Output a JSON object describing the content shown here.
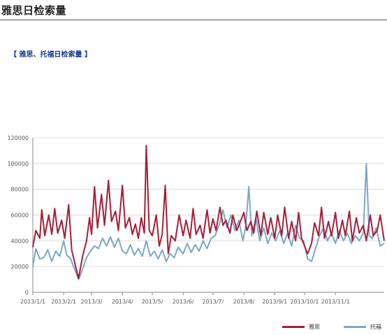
{
  "page": {
    "title": "雅思日检索量",
    "subtitle": "雅思、托福日检索量",
    "bracket_open": "【",
    "bracket_close": "】"
  },
  "chart_data": {
    "type": "line",
    "x_start": "2013/1/1",
    "x_end": "2013/12/20",
    "xticks": [
      "2013/1/1",
      "2013/2/1",
      "2013/3/",
      "2013/4/",
      "2013/5/",
      "2013/6/",
      "2013/7/",
      "2013/8/",
      "2013/9/1",
      "2013/10/1",
      "2013/11/1"
    ],
    "ylim": [
      0,
      120000
    ],
    "yticks": [
      0,
      20000,
      40000,
      60000,
      80000,
      100000,
      120000
    ],
    "grid": true,
    "legend_position": "bottom-right",
    "series": [
      {
        "name": "雅思",
        "color": "#a31f38",
        "points": [
          [
            "2013-01-01",
            35000
          ],
          [
            "2013-01-04",
            48000
          ],
          [
            "2013-01-08",
            42000
          ],
          [
            "2013-01-10",
            64000
          ],
          [
            "2013-01-13",
            44000
          ],
          [
            "2013-01-17",
            60000
          ],
          [
            "2013-01-20",
            45000
          ],
          [
            "2013-01-23",
            65000
          ],
          [
            "2013-01-26",
            46000
          ],
          [
            "2013-01-30",
            56000
          ],
          [
            "2013-02-02",
            42000
          ],
          [
            "2013-02-06",
            68000
          ],
          [
            "2013-02-09",
            33000
          ],
          [
            "2013-02-13",
            20000
          ],
          [
            "2013-02-16",
            11000
          ],
          [
            "2013-02-20",
            28000
          ],
          [
            "2013-02-24",
            40000
          ],
          [
            "2013-02-27",
            58000
          ],
          [
            "2013-03-01",
            45000
          ],
          [
            "2013-03-04",
            82000
          ],
          [
            "2013-03-07",
            50000
          ],
          [
            "2013-03-11",
            76000
          ],
          [
            "2013-03-14",
            52000
          ],
          [
            "2013-03-18",
            87000
          ],
          [
            "2013-03-21",
            55000
          ],
          [
            "2013-03-25",
            63000
          ],
          [
            "2013-03-28",
            48000
          ],
          [
            "2013-04-01",
            83000
          ],
          [
            "2013-04-04",
            50000
          ],
          [
            "2013-04-08",
            58000
          ],
          [
            "2013-04-11",
            45000
          ],
          [
            "2013-04-14",
            53000
          ],
          [
            "2013-04-17",
            42000
          ],
          [
            "2013-04-20",
            58000
          ],
          [
            "2013-04-23",
            46000
          ],
          [
            "2013-04-25",
            114000
          ],
          [
            "2013-04-28",
            48000
          ],
          [
            "2013-05-01",
            44000
          ],
          [
            "2013-05-05",
            60000
          ],
          [
            "2013-05-08",
            36000
          ],
          [
            "2013-05-11",
            45000
          ],
          [
            "2013-05-14",
            83000
          ],
          [
            "2013-05-17",
            30000
          ],
          [
            "2013-05-20",
            44000
          ],
          [
            "2013-05-24",
            40000
          ],
          [
            "2013-05-28",
            60000
          ],
          [
            "2013-06-01",
            44000
          ],
          [
            "2013-06-04",
            56000
          ],
          [
            "2013-06-08",
            42000
          ],
          [
            "2013-06-11",
            65000
          ],
          [
            "2013-06-14",
            45000
          ],
          [
            "2013-06-18",
            52000
          ],
          [
            "2013-06-21",
            42000
          ],
          [
            "2013-06-25",
            64000
          ],
          [
            "2013-06-28",
            46000
          ],
          [
            "2013-07-01",
            57000
          ],
          [
            "2013-07-04",
            48000
          ],
          [
            "2013-07-08",
            66000
          ],
          [
            "2013-07-11",
            52000
          ],
          [
            "2013-07-14",
            56000
          ],
          [
            "2013-07-18",
            46000
          ],
          [
            "2013-07-21",
            60000
          ],
          [
            "2013-07-25",
            48000
          ],
          [
            "2013-07-28",
            54000
          ],
          [
            "2013-08-01",
            62000
          ],
          [
            "2013-08-04",
            48000
          ],
          [
            "2013-08-08",
            55000
          ],
          [
            "2013-08-11",
            46000
          ],
          [
            "2013-08-14",
            63000
          ],
          [
            "2013-08-18",
            44000
          ],
          [
            "2013-08-21",
            62000
          ],
          [
            "2013-08-25",
            45000
          ],
          [
            "2013-08-28",
            58000
          ],
          [
            "2013-09-01",
            42000
          ],
          [
            "2013-09-04",
            60000
          ],
          [
            "2013-09-08",
            44000
          ],
          [
            "2013-09-11",
            66000
          ],
          [
            "2013-09-15",
            42000
          ],
          [
            "2013-09-18",
            55000
          ],
          [
            "2013-09-22",
            40000
          ],
          [
            "2013-09-25",
            62000
          ],
          [
            "2013-09-28",
            42000
          ],
          [
            "2013-10-01",
            36000
          ],
          [
            "2013-10-04",
            30000
          ],
          [
            "2013-10-08",
            38000
          ],
          [
            "2013-10-11",
            54000
          ],
          [
            "2013-10-15",
            44000
          ],
          [
            "2013-10-18",
            66000
          ],
          [
            "2013-10-21",
            42000
          ],
          [
            "2013-10-25",
            55000
          ],
          [
            "2013-10-28",
            44000
          ],
          [
            "2013-11-01",
            62000
          ],
          [
            "2013-11-04",
            42000
          ],
          [
            "2013-11-08",
            56000
          ],
          [
            "2013-11-11",
            44000
          ],
          [
            "2013-11-15",
            63000
          ],
          [
            "2013-11-18",
            40000
          ],
          [
            "2013-11-22",
            58000
          ],
          [
            "2013-11-25",
            46000
          ],
          [
            "2013-11-29",
            52000
          ],
          [
            "2013-12-02",
            40000
          ],
          [
            "2013-12-06",
            60000
          ],
          [
            "2013-12-09",
            44000
          ],
          [
            "2013-12-13",
            48000
          ],
          [
            "2013-12-16",
            60000
          ],
          [
            "2013-12-20",
            40000
          ]
        ]
      },
      {
        "name": "托福",
        "color": "#7ba7c9",
        "points": [
          [
            "2013-01-01",
            20000
          ],
          [
            "2013-01-04",
            34000
          ],
          [
            "2013-01-08",
            26000
          ],
          [
            "2013-01-12",
            27000
          ],
          [
            "2013-01-16",
            33000
          ],
          [
            "2013-01-20",
            24000
          ],
          [
            "2013-01-24",
            32000
          ],
          [
            "2013-01-28",
            28000
          ],
          [
            "2013-02-01",
            40000
          ],
          [
            "2013-02-04",
            29000
          ],
          [
            "2013-02-08",
            26000
          ],
          [
            "2013-02-12",
            18000
          ],
          [
            "2013-02-16",
            10000
          ],
          [
            "2013-02-20",
            18000
          ],
          [
            "2013-02-24",
            27000
          ],
          [
            "2013-02-28",
            32000
          ],
          [
            "2013-03-04",
            36000
          ],
          [
            "2013-03-08",
            34000
          ],
          [
            "2013-03-12",
            42000
          ],
          [
            "2013-03-16",
            36000
          ],
          [
            "2013-03-20",
            43000
          ],
          [
            "2013-03-24",
            35000
          ],
          [
            "2013-03-28",
            42000
          ],
          [
            "2013-04-01",
            32000
          ],
          [
            "2013-04-05",
            30000
          ],
          [
            "2013-04-09",
            37000
          ],
          [
            "2013-04-13",
            29000
          ],
          [
            "2013-04-17",
            34000
          ],
          [
            "2013-04-21",
            28000
          ],
          [
            "2013-04-25",
            40000
          ],
          [
            "2013-04-29",
            28000
          ],
          [
            "2013-05-03",
            32000
          ],
          [
            "2013-05-07",
            26000
          ],
          [
            "2013-05-11",
            33000
          ],
          [
            "2013-05-15",
            24000
          ],
          [
            "2013-05-19",
            30000
          ],
          [
            "2013-05-23",
            27000
          ],
          [
            "2013-05-27",
            35000
          ],
          [
            "2013-06-01",
            30000
          ],
          [
            "2013-06-05",
            38000
          ],
          [
            "2013-06-09",
            31000
          ],
          [
            "2013-06-13",
            37000
          ],
          [
            "2013-06-17",
            32000
          ],
          [
            "2013-06-21",
            40000
          ],
          [
            "2013-06-25",
            34000
          ],
          [
            "2013-06-29",
            42000
          ],
          [
            "2013-07-03",
            44000
          ],
          [
            "2013-07-07",
            52000
          ],
          [
            "2013-07-11",
            64000
          ],
          [
            "2013-07-15",
            50000
          ],
          [
            "2013-07-19",
            60000
          ],
          [
            "2013-07-23",
            48000
          ],
          [
            "2013-07-27",
            56000
          ],
          [
            "2013-07-31",
            40000
          ],
          [
            "2013-08-03",
            52000
          ],
          [
            "2013-08-06",
            82000
          ],
          [
            "2013-08-09",
            44000
          ],
          [
            "2013-08-13",
            58000
          ],
          [
            "2013-08-17",
            40000
          ],
          [
            "2013-08-21",
            50000
          ],
          [
            "2013-08-25",
            38000
          ],
          [
            "2013-08-29",
            46000
          ],
          [
            "2013-09-02",
            40000
          ],
          [
            "2013-09-06",
            48000
          ],
          [
            "2013-09-10",
            38000
          ],
          [
            "2013-09-14",
            46000
          ],
          [
            "2013-09-18",
            36000
          ],
          [
            "2013-09-22",
            52000
          ],
          [
            "2013-09-26",
            42000
          ],
          [
            "2013-09-30",
            40000
          ],
          [
            "2013-10-04",
            26000
          ],
          [
            "2013-10-08",
            24000
          ],
          [
            "2013-10-12",
            34000
          ],
          [
            "2013-10-16",
            44000
          ],
          [
            "2013-10-20",
            50000
          ],
          [
            "2013-10-24",
            40000
          ],
          [
            "2013-10-28",
            46000
          ],
          [
            "2013-11-01",
            38000
          ],
          [
            "2013-11-05",
            48000
          ],
          [
            "2013-11-09",
            40000
          ],
          [
            "2013-11-13",
            46000
          ],
          [
            "2013-11-17",
            38000
          ],
          [
            "2013-11-21",
            44000
          ],
          [
            "2013-11-25",
            40000
          ],
          [
            "2013-11-29",
            46000
          ],
          [
            "2013-12-02",
            100000
          ],
          [
            "2013-12-05",
            44000
          ],
          [
            "2013-12-08",
            42000
          ],
          [
            "2013-12-12",
            50000
          ],
          [
            "2013-12-16",
            36000
          ],
          [
            "2013-12-20",
            38000
          ]
        ]
      }
    ]
  }
}
